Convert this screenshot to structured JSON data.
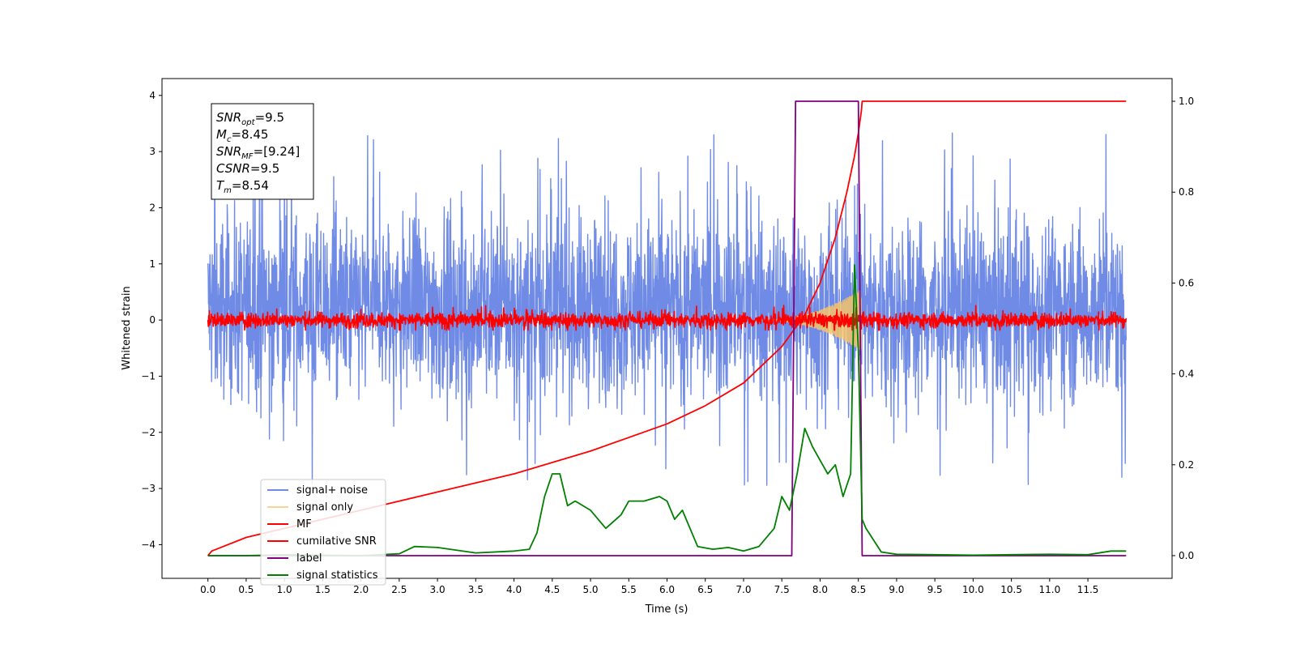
{
  "chart_data": {
    "type": "line",
    "xlabel": "Time (s)",
    "ylabel": "Whitened strain",
    "xlim": [
      -0.6,
      12.6
    ],
    "ylim": [
      -4.6,
      4.3
    ],
    "y2lim": [
      -0.05,
      1.05
    ],
    "xticks": [
      "0.0",
      "0.5",
      "1.0",
      "1.5",
      "2.0",
      "2.5",
      "3.0",
      "3.5",
      "4.0",
      "4.5",
      "5.0",
      "5.5",
      "6.0",
      "6.5",
      "7.0",
      "7.5",
      "8.0",
      "8.5",
      "9.0",
      "9.5",
      "10.0",
      "10.5",
      "11.0",
      "11.5"
    ],
    "yticks": [
      "4",
      "3",
      "2",
      "1",
      "0",
      "−1",
      "−2",
      "−3",
      "−4"
    ],
    "y2ticks": [
      "1.0",
      "0.8",
      "0.6",
      "0.4",
      "0.2",
      "0.0"
    ],
    "legend_position": "lower-left",
    "annotation": {
      "lines": [
        {
          "base": "SNR",
          "sub": "opt",
          "rest": "=9.5"
        },
        {
          "base": "M",
          "sub": "c",
          "rest": "=8.45"
        },
        {
          "base": "SNR",
          "sub": "MF",
          "rest": "=[9.24]"
        },
        {
          "base": "CSNR",
          "sub": "",
          "rest": "=9.5"
        },
        {
          "base": "T",
          "sub": "m",
          "rest": "=8.54"
        }
      ]
    },
    "series": [
      {
        "name": "signal+ noise",
        "color": "#6f8be6",
        "axis": "left",
        "style": "noise",
        "x_range": [
          0,
          12
        ],
        "center": 0.2,
        "amplitude": 1.45,
        "peak_max": 3.9,
        "peak_min": -3.7
      },
      {
        "name": "signal only",
        "color": "#f5c36a",
        "axis": "left",
        "style": "chirp",
        "x_range": [
          7.2,
          8.54
        ],
        "peak_amplitude": 0.55
      },
      {
        "name": "MF",
        "color": "#ff0000",
        "axis": "left",
        "style": "noise",
        "x_range": [
          0,
          12
        ],
        "center": 0.0,
        "amplitude": 0.12,
        "peak_max": 0.35,
        "peak_min": -0.18
      },
      {
        "name": "cumilative SNR",
        "color": "#ff0000",
        "axis": "right",
        "x": [
          0,
          0.05,
          0.5,
          1,
          2,
          3,
          4,
          5,
          6,
          6.5,
          7,
          7.5,
          7.8,
          8,
          8.2,
          8.35,
          8.45,
          8.5,
          8.54,
          8.55,
          12.0
        ],
        "y": [
          0,
          0.01,
          0.04,
          0.06,
          0.1,
          0.14,
          0.18,
          0.23,
          0.29,
          0.33,
          0.38,
          0.46,
          0.53,
          0.6,
          0.7,
          0.8,
          0.88,
          0.93,
          0.98,
          1.0,
          1.0
        ]
      },
      {
        "name": "label",
        "color": "#800080",
        "axis": "right",
        "x": [
          0,
          7.63,
          7.68,
          8.5,
          8.55,
          12.0
        ],
        "y": [
          0,
          0,
          1,
          1,
          0,
          0
        ]
      },
      {
        "name": "signal statistics",
        "color": "#008000",
        "axis": "right",
        "x": [
          0,
          0.5,
          1,
          1.5,
          2,
          2.5,
          2.7,
          3,
          3.5,
          4,
          4.2,
          4.3,
          4.4,
          4.5,
          4.6,
          4.7,
          4.8,
          5,
          5.2,
          5.4,
          5.5,
          5.7,
          5.9,
          6,
          6.1,
          6.2,
          6.4,
          6.6,
          6.8,
          7,
          7.2,
          7.4,
          7.5,
          7.6,
          7.7,
          7.8,
          7.9,
          8,
          8.1,
          8.2,
          8.3,
          8.4,
          8.45,
          8.5,
          8.55,
          8.6,
          8.8,
          9,
          9.5,
          10,
          10.5,
          11,
          11.5,
          11.8,
          12
        ],
        "y": [
          0,
          0,
          0.002,
          0.001,
          0,
          0.004,
          0.02,
          0.018,
          0.006,
          0.01,
          0.014,
          0.05,
          0.13,
          0.18,
          0.18,
          0.11,
          0.12,
          0.1,
          0.06,
          0.09,
          0.12,
          0.12,
          0.13,
          0.12,
          0.08,
          0.1,
          0.02,
          0.014,
          0.018,
          0.01,
          0.02,
          0.06,
          0.13,
          0.1,
          0.18,
          0.28,
          0.24,
          0.21,
          0.18,
          0.2,
          0.13,
          0.18,
          0.64,
          0.45,
          0.08,
          0.06,
          0.008,
          0.003,
          0.002,
          0.001,
          0.002,
          0.003,
          0.002,
          0.01,
          0.01
        ]
      }
    ]
  }
}
